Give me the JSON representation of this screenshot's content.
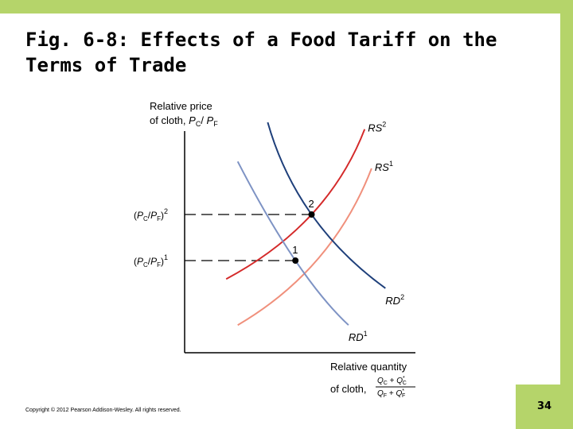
{
  "slide": {
    "title_line1": "Fig. 6-8: Effects of a Food Tariff on the",
    "title_line2": "Terms of Trade",
    "copyright": "Copyright © 2012 Pearson Addison-Wesley. All rights reserved.",
    "page_number": "34",
    "accent_color": "#b5d46a"
  },
  "chart_data": {
    "type": "line",
    "title": "Fig. 6-8: Effects of a Food Tariff on the Terms of Trade",
    "ylabel": "Relative price of cloth, PC/PF",
    "xlabel": "Relative quantity of cloth, (QC + Q*C)/(QF + Q*F)",
    "y_label_line1": "Relative price",
    "y_label_line2": "of cloth, ",
    "x_label_line1": "Relative quantity",
    "x_label_line2": "of cloth, ",
    "xlim": [
      0,
      10
    ],
    "ylim": [
      0,
      10
    ],
    "series": [
      {
        "name": "RS2",
        "label_main": "RS",
        "label_sup": "2",
        "color": "#d42a2a",
        "x": [
          1.8,
          5.5,
          7.8
        ],
        "y": [
          3.2,
          6.0,
          9.7
        ]
      },
      {
        "name": "RS1",
        "label_main": "RS",
        "label_sup": "1",
        "color": "#f0907c",
        "x": [
          2.3,
          5.8,
          8.1
        ],
        "y": [
          1.2,
          4.1,
          8.0
        ]
      },
      {
        "name": "RD2",
        "label_main": "RD",
        "label_sup": "2",
        "color": "#1e3f7a",
        "x": [
          3.6,
          5.5,
          8.7
        ],
        "y": [
          10.0,
          6.0,
          2.8
        ]
      },
      {
        "name": "RD1",
        "label_main": "RD",
        "label_sup": "1",
        "color": "#7e93c4",
        "x": [
          2.3,
          4.8,
          7.1
        ],
        "y": [
          8.3,
          4.0,
          1.2
        ]
      }
    ],
    "points": [
      {
        "label": "2",
        "x": 5.5,
        "y": 6.0,
        "tick_main": "(PC/PF)",
        "tick_sup": "2"
      },
      {
        "label": "1",
        "x": 4.8,
        "y": 4.0,
        "tick_main": "(PC/PF)",
        "tick_sup": "1"
      }
    ]
  }
}
